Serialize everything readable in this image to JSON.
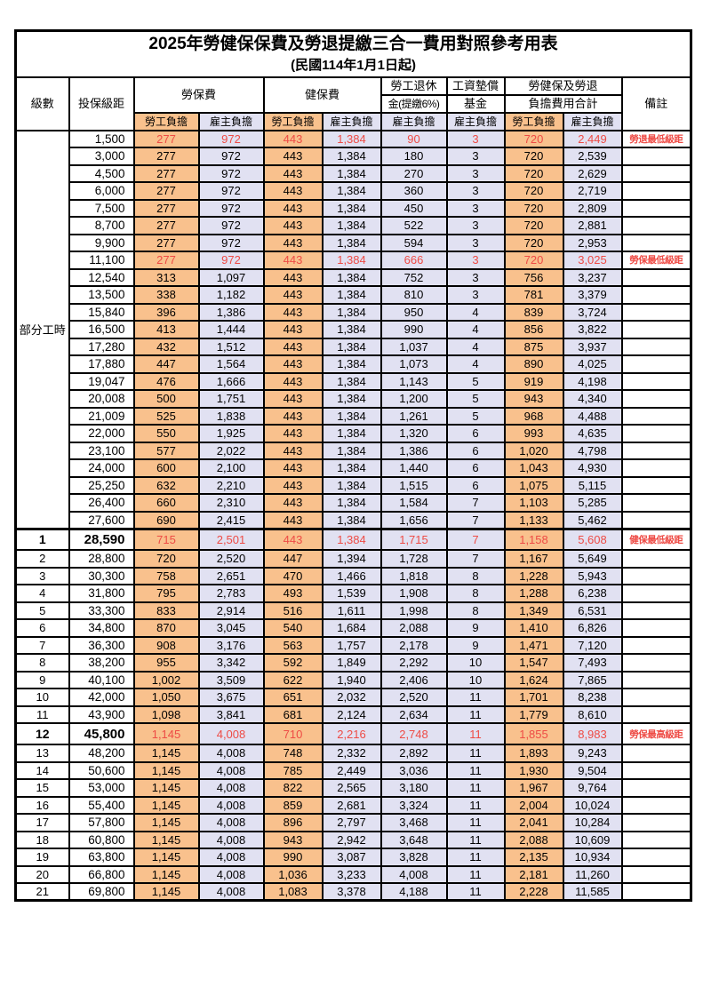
{
  "title": {
    "line1": "2025年勞健保保費及勞退提繳三合一費用對照參考用表",
    "line2": "(民國114年1月1日起)"
  },
  "header": {
    "level": "級數",
    "bracket": "投保級距",
    "labor_fee": "勞保費",
    "health_fee": "健保費",
    "pension_l1": "勞工退休",
    "pension_l2": "金(提繳6%)",
    "wage_fund_l1": "工資墊償",
    "wage_fund_l2": "基金",
    "total_l1": "勞健保及勞退",
    "total_l2": "負擔費用合計",
    "remarks": "備註"
  },
  "subheaders": [
    "勞工負擔",
    "雇主負擔",
    "勞工負擔",
    "雇主負擔",
    "雇主負擔",
    "雇主負擔",
    "勞工負擔",
    "雇主負擔"
  ],
  "part_time": {
    "label": "部分工時",
    "span": 23
  },
  "colors": {
    "employee_bg": "#F9C18D",
    "employer_bg": "#E1E1F2",
    "highlight_text": "#EE4B45",
    "border": "#000000",
    "page_bg": "#FFFFFF"
  },
  "notes": [
    "勞退最低級距",
    "勞保最低級距",
    "健保最低級距",
    "勞保最高級距"
  ],
  "rows": [
    [
      "",
      "1,500",
      "277",
      "972",
      "443",
      "1,384",
      "90",
      "3",
      "720",
      "2,449",
      "勞退最低級距",
      "red"
    ],
    [
      "",
      "3,000",
      "277",
      "972",
      "443",
      "1,384",
      "180",
      "3",
      "720",
      "2,539",
      "",
      ""
    ],
    [
      "",
      "4,500",
      "277",
      "972",
      "443",
      "1,384",
      "270",
      "3",
      "720",
      "2,629",
      "",
      ""
    ],
    [
      "",
      "6,000",
      "277",
      "972",
      "443",
      "1,384",
      "360",
      "3",
      "720",
      "2,719",
      "",
      ""
    ],
    [
      "",
      "7,500",
      "277",
      "972",
      "443",
      "1,384",
      "450",
      "3",
      "720",
      "2,809",
      "",
      ""
    ],
    [
      "",
      "8,700",
      "277",
      "972",
      "443",
      "1,384",
      "522",
      "3",
      "720",
      "2,881",
      "",
      ""
    ],
    [
      "",
      "9,900",
      "277",
      "972",
      "443",
      "1,384",
      "594",
      "3",
      "720",
      "2,953",
      "",
      ""
    ],
    [
      "",
      "11,100",
      "277",
      "972",
      "443",
      "1,384",
      "666",
      "3",
      "720",
      "3,025",
      "勞保最低級距",
      "red"
    ],
    [
      "",
      "12,540",
      "313",
      "1,097",
      "443",
      "1,384",
      "752",
      "3",
      "756",
      "3,237",
      "",
      ""
    ],
    [
      "",
      "13,500",
      "338",
      "1,182",
      "443",
      "1,384",
      "810",
      "3",
      "781",
      "3,379",
      "",
      ""
    ],
    [
      "",
      "15,840",
      "396",
      "1,386",
      "443",
      "1,384",
      "950",
      "4",
      "839",
      "3,724",
      "",
      ""
    ],
    [
      "",
      "16,500",
      "413",
      "1,444",
      "443",
      "1,384",
      "990",
      "4",
      "856",
      "3,822",
      "",
      ""
    ],
    [
      "",
      "17,280",
      "432",
      "1,512",
      "443",
      "1,384",
      "1,037",
      "4",
      "875",
      "3,937",
      "",
      ""
    ],
    [
      "",
      "17,880",
      "447",
      "1,564",
      "443",
      "1,384",
      "1,073",
      "4",
      "890",
      "4,025",
      "",
      ""
    ],
    [
      "",
      "19,047",
      "476",
      "1,666",
      "443",
      "1,384",
      "1,143",
      "5",
      "919",
      "4,198",
      "",
      ""
    ],
    [
      "",
      "20,008",
      "500",
      "1,751",
      "443",
      "1,384",
      "1,200",
      "5",
      "943",
      "4,340",
      "",
      ""
    ],
    [
      "",
      "21,009",
      "525",
      "1,838",
      "443",
      "1,384",
      "1,261",
      "5",
      "968",
      "4,488",
      "",
      ""
    ],
    [
      "",
      "22,000",
      "550",
      "1,925",
      "443",
      "1,384",
      "1,320",
      "6",
      "993",
      "4,635",
      "",
      ""
    ],
    [
      "",
      "23,100",
      "577",
      "2,022",
      "443",
      "1,384",
      "1,386",
      "6",
      "1,020",
      "4,798",
      "",
      ""
    ],
    [
      "",
      "24,000",
      "600",
      "2,100",
      "443",
      "1,384",
      "1,440",
      "6",
      "1,043",
      "4,930",
      "",
      ""
    ],
    [
      "",
      "25,250",
      "632",
      "2,210",
      "443",
      "1,384",
      "1,515",
      "6",
      "1,075",
      "5,115",
      "",
      ""
    ],
    [
      "",
      "26,400",
      "660",
      "2,310",
      "443",
      "1,384",
      "1,584",
      "7",
      "1,103",
      "5,285",
      "",
      ""
    ],
    [
      "",
      "27,600",
      "690",
      "2,415",
      "443",
      "1,384",
      "1,656",
      "7",
      "1,133",
      "5,462",
      "",
      ""
    ],
    [
      "1",
      "28,590",
      "715",
      "2,501",
      "443",
      "1,384",
      "1,715",
      "7",
      "1,158",
      "5,608",
      "健保最低級距",
      "red-bold"
    ],
    [
      "2",
      "28,800",
      "720",
      "2,520",
      "447",
      "1,394",
      "1,728",
      "7",
      "1,167",
      "5,649",
      "",
      ""
    ],
    [
      "3",
      "30,300",
      "758",
      "2,651",
      "470",
      "1,466",
      "1,818",
      "8",
      "1,228",
      "5,943",
      "",
      ""
    ],
    [
      "4",
      "31,800",
      "795",
      "2,783",
      "493",
      "1,539",
      "1,908",
      "8",
      "1,288",
      "6,238",
      "",
      ""
    ],
    [
      "5",
      "33,300",
      "833",
      "2,914",
      "516",
      "1,611",
      "1,998",
      "8",
      "1,349",
      "6,531",
      "",
      ""
    ],
    [
      "6",
      "34,800",
      "870",
      "3,045",
      "540",
      "1,684",
      "2,088",
      "9",
      "1,410",
      "6,826",
      "",
      ""
    ],
    [
      "7",
      "36,300",
      "908",
      "3,176",
      "563",
      "1,757",
      "2,178",
      "9",
      "1,471",
      "7,120",
      "",
      ""
    ],
    [
      "8",
      "38,200",
      "955",
      "3,342",
      "592",
      "1,849",
      "2,292",
      "10",
      "1,547",
      "7,493",
      "",
      ""
    ],
    [
      "9",
      "40,100",
      "1,002",
      "3,509",
      "622",
      "1,940",
      "2,406",
      "10",
      "1,624",
      "7,865",
      "",
      ""
    ],
    [
      "10",
      "42,000",
      "1,050",
      "3,675",
      "651",
      "2,032",
      "2,520",
      "11",
      "1,701",
      "8,238",
      "",
      ""
    ],
    [
      "11",
      "43,900",
      "1,098",
      "3,841",
      "681",
      "2,124",
      "2,634",
      "11",
      "1,779",
      "8,610",
      "",
      ""
    ],
    [
      "12",
      "45,800",
      "1,145",
      "4,008",
      "710",
      "2,216",
      "2,748",
      "11",
      "1,855",
      "8,983",
      "勞保最高級距",
      "red-bold"
    ],
    [
      "13",
      "48,200",
      "1,145",
      "4,008",
      "748",
      "2,332",
      "2,892",
      "11",
      "1,893",
      "9,243",
      "",
      ""
    ],
    [
      "14",
      "50,600",
      "1,145",
      "4,008",
      "785",
      "2,449",
      "3,036",
      "11",
      "1,930",
      "9,504",
      "",
      ""
    ],
    [
      "15",
      "53,000",
      "1,145",
      "4,008",
      "822",
      "2,565",
      "3,180",
      "11",
      "1,967",
      "9,764",
      "",
      ""
    ],
    [
      "16",
      "55,400",
      "1,145",
      "4,008",
      "859",
      "2,681",
      "3,324",
      "11",
      "2,004",
      "10,024",
      "",
      ""
    ],
    [
      "17",
      "57,800",
      "1,145",
      "4,008",
      "896",
      "2,797",
      "3,468",
      "11",
      "2,041",
      "10,284",
      "",
      ""
    ],
    [
      "18",
      "60,800",
      "1,145",
      "4,008",
      "943",
      "2,942",
      "3,648",
      "11",
      "2,088",
      "10,609",
      "",
      ""
    ],
    [
      "19",
      "63,800",
      "1,145",
      "4,008",
      "990",
      "3,087",
      "3,828",
      "11",
      "2,135",
      "10,934",
      "",
      ""
    ],
    [
      "20",
      "66,800",
      "1,145",
      "4,008",
      "1,036",
      "3,233",
      "4,008",
      "11",
      "2,181",
      "11,260",
      "",
      ""
    ],
    [
      "21",
      "69,800",
      "1,145",
      "4,008",
      "1,083",
      "3,378",
      "4,188",
      "11",
      "2,228",
      "11,585",
      "",
      ""
    ]
  ]
}
